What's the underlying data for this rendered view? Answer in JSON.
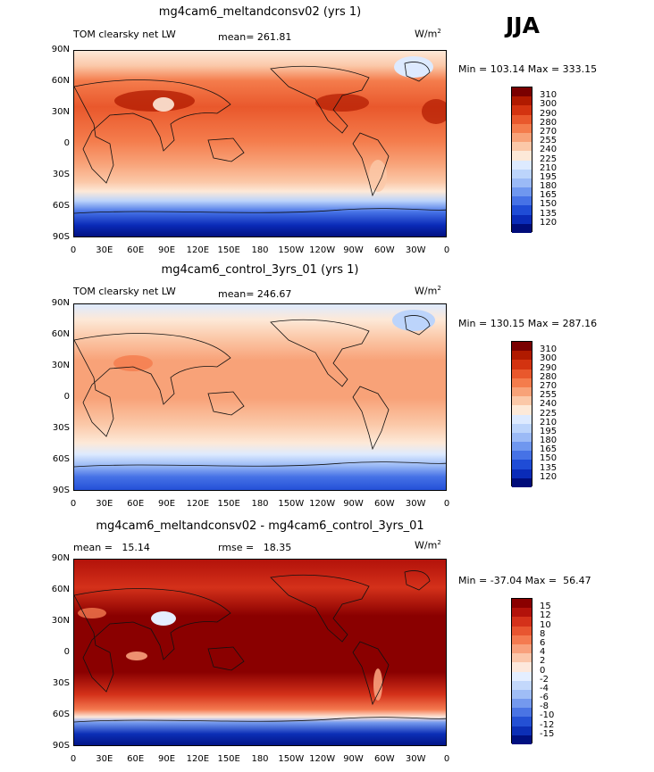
{
  "season": "JJA",
  "panels": [
    {
      "title": "mg4cam6_meltandconsv02 (yrs 1)",
      "left_label": "TOM clearsky net LW",
      "center_label": "mean= 261.81",
      "units": "W/m",
      "units_sup": "2",
      "minmax": "Min = 103.14 Max = 333.15",
      "colorbar": {
        "labels": [
          "310",
          "300",
          "290",
          "280",
          "270",
          "255",
          "240",
          "225",
          "210",
          "195",
          "180",
          "165",
          "150",
          "135",
          "120"
        ],
        "colors": [
          "#7a0000",
          "#b01a00",
          "#d33310",
          "#e9582c",
          "#f47c4c",
          "#f8a278",
          "#fbc8a8",
          "#fde9d8",
          "#ddeaff",
          "#bcd4fb",
          "#9bbaf6",
          "#6f97ef",
          "#4672e6",
          "#1f4cd6",
          "#0a2bb8",
          "#000c7a"
        ]
      }
    },
    {
      "title": "mg4cam6_control_3yrs_01 (yrs 1)",
      "left_label": "TOM clearsky net LW",
      "center_label": "mean= 246.67",
      "units": "W/m",
      "units_sup": "2",
      "minmax": "Min = 130.15 Max = 287.16",
      "colorbar": {
        "labels": [
          "310",
          "300",
          "290",
          "280",
          "270",
          "255",
          "240",
          "225",
          "210",
          "195",
          "180",
          "165",
          "150",
          "135",
          "120"
        ],
        "colors": [
          "#7a0000",
          "#b01a00",
          "#d33310",
          "#e9582c",
          "#f47c4c",
          "#f8a278",
          "#fbc8a8",
          "#fde9d8",
          "#ddeaff",
          "#bcd4fb",
          "#9bbaf6",
          "#6f97ef",
          "#4672e6",
          "#1f4cd6",
          "#0a2bb8",
          "#000c7a"
        ]
      }
    },
    {
      "title": "mg4cam6_meltandconsv02 - mg4cam6_control_3yrs_01",
      "left_label": "mean =   15.14",
      "center_label": "rmse =   18.35",
      "units": "W/m",
      "units_sup": "2",
      "minmax": "Min = -37.04 Max =  56.47",
      "colorbar": {
        "labels": [
          "15",
          "12",
          "10",
          "8",
          "6",
          "4",
          "2",
          "0",
          "-2",
          "-4",
          "-6",
          "-8",
          "-10",
          "-12",
          "-15"
        ],
        "colors": [
          "#8a0000",
          "#b3120a",
          "#d4311a",
          "#e85530",
          "#f47a50",
          "#f8a07c",
          "#fbc6aa",
          "#fde8dc",
          "#e4eeff",
          "#c3d8fb",
          "#9fbdf6",
          "#7499ee",
          "#4a74e4",
          "#2450d4",
          "#0c2fb6",
          "#001080"
        ]
      }
    }
  ],
  "lat_labels": [
    "90N",
    "60N",
    "30N",
    "0",
    "30S",
    "60S",
    "90S"
  ],
  "lon_labels": [
    "0",
    "30E",
    "60E",
    "90E",
    "120E",
    "150E",
    "180",
    "150W",
    "120W",
    "90W",
    "60W",
    "30W",
    "0"
  ]
}
